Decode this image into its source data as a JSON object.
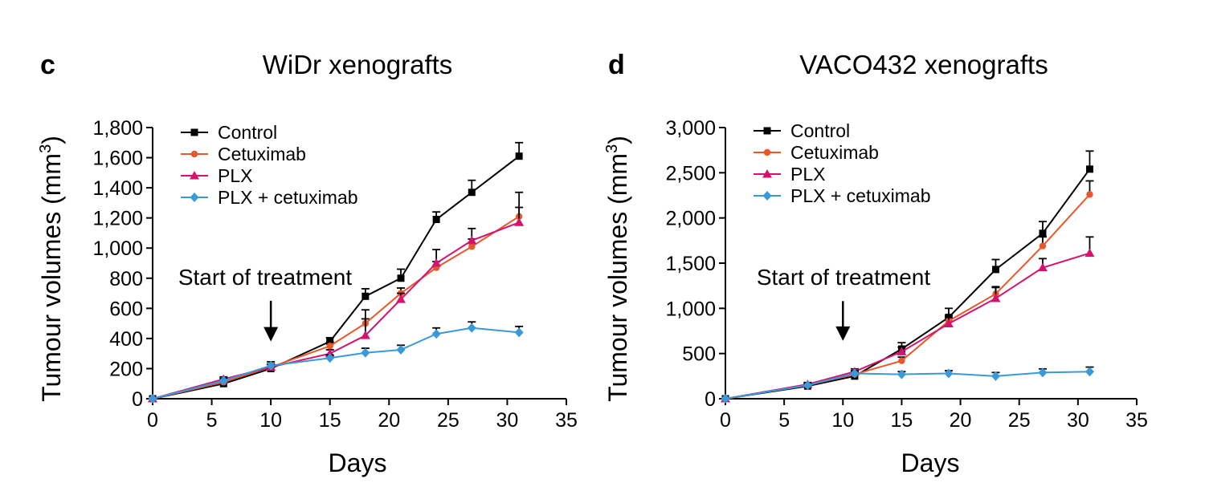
{
  "chart_data": [
    {
      "type": "line",
      "panel_label": "c",
      "title": "WiDr xenografts",
      "xlabel": "Days",
      "ylabel_main": "Tumour volumes (mm",
      "ylabel_sup": "3",
      "ylabel_close": ")",
      "xlim": [
        0,
        35
      ],
      "ylim": [
        0,
        1800
      ],
      "xticks": [
        0,
        5,
        10,
        15,
        20,
        25,
        30,
        35
      ],
      "xtick_labels": [
        "0",
        "5",
        "10",
        "15",
        "20",
        "25",
        "30",
        "35"
      ],
      "yticks": [
        0,
        200,
        400,
        600,
        800,
        1000,
        1200,
        1400,
        1600,
        1800
      ],
      "ytick_labels": [
        "0",
        "200",
        "400",
        "600",
        "800",
        "1,000",
        "1,200",
        "1,400",
        "1,600",
        "1,800"
      ],
      "annotation": {
        "text": "Start of treatment",
        "x": 10,
        "arrow_from": 650,
        "arrow_to": 380
      },
      "series": [
        {
          "name": "Control",
          "color": "#000000",
          "marker": "square",
          "x": [
            0,
            6,
            10,
            15,
            18,
            21,
            24,
            27,
            31
          ],
          "y": [
            0,
            100,
            200,
            380,
            680,
            800,
            1190,
            1370,
            1610
          ],
          "err": [
            0,
            20,
            30,
            25,
            50,
            60,
            50,
            80,
            90
          ]
        },
        {
          "name": "Cetuximab",
          "color": "#e8582a",
          "marker": "circle",
          "x": [
            0,
            6,
            10,
            15,
            18,
            21,
            24,
            27,
            31
          ],
          "y": [
            0,
            110,
            210,
            350,
            500,
            700,
            870,
            1010,
            1210
          ],
          "err": [
            0,
            15,
            20,
            25,
            30,
            35,
            40,
            50,
            60
          ]
        },
        {
          "name": "PLX",
          "color": "#d4136e",
          "marker": "triangle",
          "x": [
            0,
            6,
            10,
            15,
            18,
            21,
            24,
            27,
            31
          ],
          "y": [
            0,
            130,
            210,
            300,
            420,
            660,
            900,
            1050,
            1170
          ],
          "err": [
            0,
            15,
            20,
            25,
            170,
            40,
            90,
            80,
            200
          ]
        },
        {
          "name": "PLX + cetuximab",
          "color": "#3a9ad9",
          "marker": "diamond",
          "x": [
            0,
            6,
            10,
            15,
            18,
            21,
            24,
            27,
            31
          ],
          "y": [
            0,
            120,
            220,
            270,
            305,
            325,
            430,
            470,
            440
          ],
          "err": [
            0,
            15,
            25,
            20,
            30,
            30,
            40,
            40,
            40
          ]
        }
      ]
    },
    {
      "type": "line",
      "panel_label": "d",
      "title": "VACO432 xenografts",
      "xlabel": "Days",
      "ylabel_main": "Tumour volumes (mm",
      "ylabel_sup": "3",
      "ylabel_close": ")",
      "xlim": [
        0,
        35
      ],
      "ylim": [
        0,
        3000
      ],
      "xticks": [
        0,
        5,
        10,
        15,
        20,
        25,
        30,
        35
      ],
      "xtick_labels": [
        "0",
        "5",
        "10",
        "15",
        "20",
        "25",
        "30",
        "35"
      ],
      "yticks": [
        0,
        500,
        1000,
        1500,
        2000,
        2500,
        3000
      ],
      "ytick_labels": [
        "0",
        "500",
        "1,000",
        "1,500",
        "2,000",
        "2,500",
        "3,000"
      ],
      "annotation": {
        "text": "Start of treatment",
        "x": 10,
        "arrow_from": 1080,
        "arrow_to": 640
      },
      "series": [
        {
          "name": "Control",
          "color": "#000000",
          "marker": "square",
          "x": [
            0,
            7,
            11,
            15,
            19,
            23,
            27,
            31
          ],
          "y": [
            0,
            140,
            250,
            550,
            900,
            1430,
            1830,
            2540
          ],
          "err": [
            0,
            20,
            40,
            70,
            100,
            110,
            130,
            200
          ]
        },
        {
          "name": "Cetuximab",
          "color": "#e8582a",
          "marker": "circle",
          "x": [
            0,
            7,
            11,
            15,
            19,
            23,
            27,
            31
          ],
          "y": [
            0,
            150,
            270,
            420,
            860,
            1160,
            1690,
            2260
          ],
          "err": [
            0,
            20,
            30,
            40,
            60,
            80,
            100,
            150
          ]
        },
        {
          "name": "PLX",
          "color": "#d4136e",
          "marker": "triangle",
          "x": [
            0,
            7,
            11,
            15,
            19,
            23,
            27,
            31
          ],
          "y": [
            0,
            160,
            300,
            520,
            830,
            1110,
            1450,
            1610
          ],
          "err": [
            0,
            20,
            30,
            50,
            70,
            120,
            100,
            180
          ]
        },
        {
          "name": "PLX + cetuximab",
          "color": "#3a9ad9",
          "marker": "diamond",
          "x": [
            0,
            7,
            11,
            15,
            19,
            23,
            27,
            31
          ],
          "y": [
            0,
            150,
            280,
            270,
            280,
            250,
            290,
            300
          ],
          "err": [
            0,
            20,
            30,
            30,
            30,
            40,
            40,
            50
          ]
        }
      ]
    }
  ]
}
